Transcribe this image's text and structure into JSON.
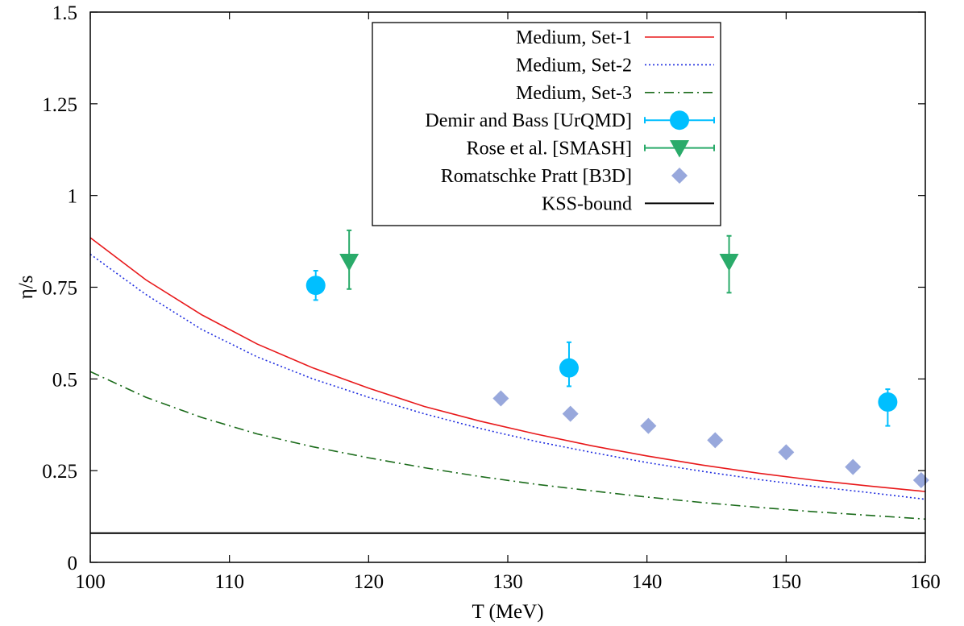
{
  "chart_data": {
    "type": "line",
    "xlabel": "T (MeV)",
    "ylabel": "η/s",
    "xlim": [
      100,
      160
    ],
    "ylim": [
      0,
      1.5
    ],
    "xticks": [
      "100",
      "110",
      "120",
      "130",
      "140",
      "150",
      "160"
    ],
    "yticks": [
      "0",
      "0.25",
      "0.5",
      "0.75",
      "1",
      "1.25",
      "1.5"
    ],
    "grid": false,
    "legend_position": "top-center",
    "series": [
      {
        "name": "Medium, Set-1",
        "kind": "line",
        "style": "solid",
        "color": "#e8181a",
        "x": [
          100,
          104,
          108,
          112,
          116,
          120,
          124,
          128,
          132,
          136,
          140,
          144,
          148,
          152,
          156,
          160
        ],
        "y": [
          0.885,
          0.77,
          0.675,
          0.595,
          0.53,
          0.475,
          0.425,
          0.385,
          0.35,
          0.318,
          0.29,
          0.265,
          0.243,
          0.224,
          0.208,
          0.193
        ]
      },
      {
        "name": "Medium, Set-2",
        "kind": "line",
        "style": "dotted",
        "color": "#1f2de0",
        "x": [
          100,
          104,
          108,
          112,
          116,
          120,
          124,
          128,
          132,
          136,
          140,
          144,
          148,
          152,
          156,
          160
        ],
        "y": [
          0.84,
          0.73,
          0.635,
          0.56,
          0.5,
          0.45,
          0.405,
          0.365,
          0.33,
          0.3,
          0.272,
          0.248,
          0.226,
          0.207,
          0.19,
          0.172
        ]
      },
      {
        "name": "Medium, Set-3",
        "kind": "line",
        "style": "dash-dot",
        "color": "#1a6b1a",
        "x": [
          100,
          104,
          108,
          112,
          116,
          120,
          124,
          128,
          132,
          136,
          140,
          144,
          148,
          152,
          156,
          160
        ],
        "y": [
          0.52,
          0.45,
          0.395,
          0.35,
          0.315,
          0.285,
          0.258,
          0.234,
          0.213,
          0.195,
          0.178,
          0.163,
          0.15,
          0.138,
          0.128,
          0.118
        ]
      },
      {
        "name": "Demir and Bass [UrQMD]",
        "kind": "errorbar",
        "marker": "circle",
        "color": "#00bfff",
        "x": [
          116.2,
          134.4,
          157.3
        ],
        "y": [
          0.755,
          0.53,
          0.437
        ],
        "yerr_low": [
          0.04,
          0.05,
          0.065
        ],
        "yerr_high": [
          0.04,
          0.07,
          0.035
        ]
      },
      {
        "name": "Rose et al. [SMASH]",
        "kind": "errorbar",
        "marker": "triangle-down",
        "color": "#2aab6a",
        "x": [
          118.6,
          145.9
        ],
        "y": [
          0.82,
          0.82
        ],
        "yerr_low": [
          0.075,
          0.085
        ],
        "yerr_high": [
          0.085,
          0.07
        ]
      },
      {
        "name": "Romatschke  Pratt [B3D]",
        "kind": "scatter",
        "marker": "diamond",
        "color": "#98a8dc",
        "x": [
          129.5,
          134.5,
          140.1,
          144.9,
          150.0,
          154.8,
          159.7
        ],
        "y": [
          0.447,
          0.405,
          0.372,
          0.333,
          0.3,
          0.26,
          0.224
        ]
      },
      {
        "name": "KSS-bound",
        "kind": "line",
        "style": "solid",
        "color": "#000000",
        "x": [
          100,
          160
        ],
        "y": [
          0.0796,
          0.0796
        ]
      }
    ]
  }
}
